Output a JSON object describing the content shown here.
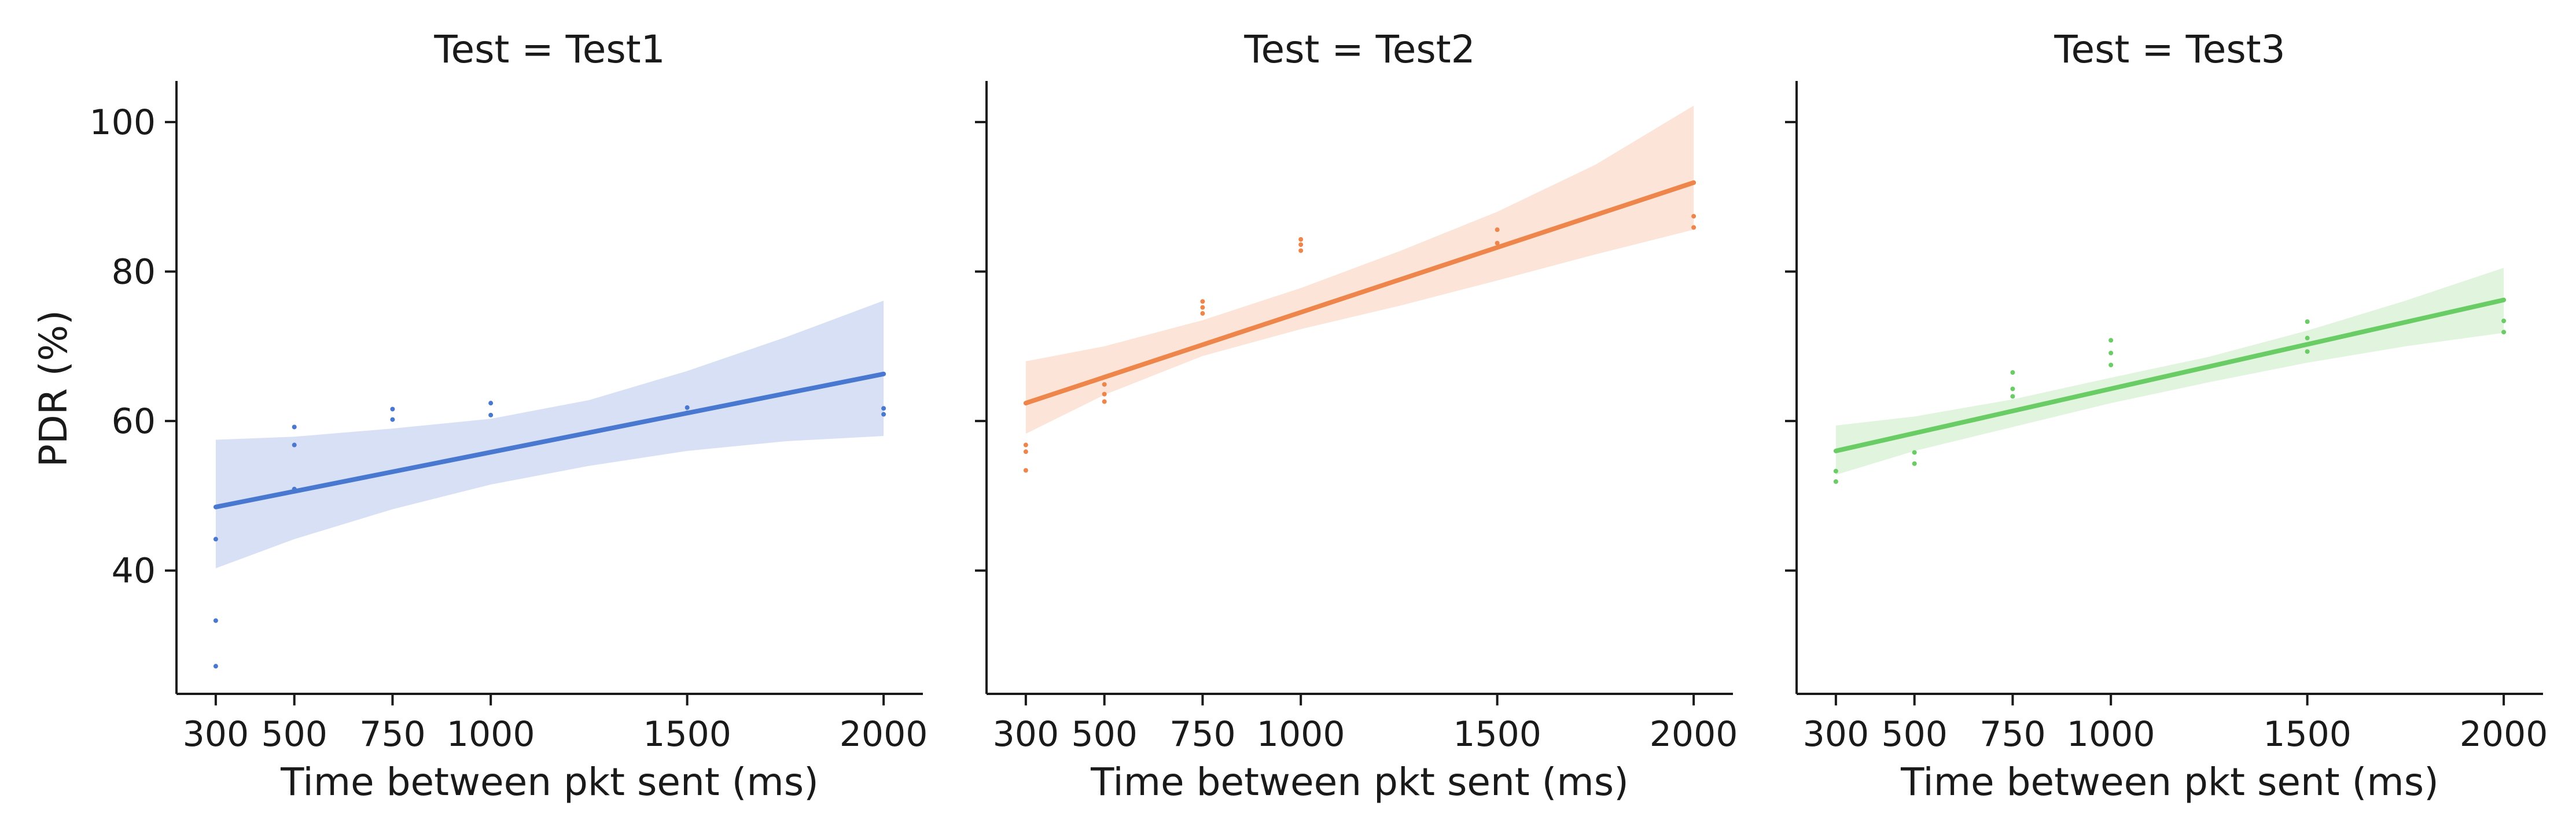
{
  "figure": {
    "ylabel": "PDR (%)",
    "xlabel": "Time between pkt sent (ms)"
  },
  "chart_data": [
    {
      "type": "scatter",
      "title": "Test = Test1",
      "xlabel": "Time between pkt sent (ms)",
      "ylabel": "PDR (%)",
      "x_ticks": [
        300,
        500,
        750,
        1000,
        1500,
        2000
      ],
      "y_ticks": [
        40,
        60,
        80,
        100
      ],
      "xlim": [
        200,
        2100
      ],
      "ylim": [
        23.5,
        105.5
      ],
      "color": "#4878d0",
      "band_color": "#c9d6f1",
      "points": [
        [
          300,
          27.2
        ],
        [
          300,
          33.3
        ],
        [
          300,
          44.2
        ],
        [
          500,
          50.9
        ],
        [
          500,
          56.8
        ],
        [
          500,
          59.2
        ],
        [
          750,
          60.2
        ],
        [
          750,
          61.6
        ],
        [
          1000,
          60.8
        ],
        [
          1000,
          62.4
        ],
        [
          1500,
          61.1
        ],
        [
          1500,
          61.8
        ],
        [
          2000,
          60.9
        ],
        [
          2000,
          61.7
        ]
      ],
      "regression": {
        "x": [
          300,
          2000
        ],
        "y": [
          48.5,
          66.3
        ]
      },
      "ci_band": {
        "x": [
          300,
          500,
          750,
          1000,
          1250,
          1500,
          1750,
          2000
        ],
        "lower": [
          40.3,
          44.2,
          48.2,
          51.5,
          54.0,
          56.0,
          57.3,
          58.0
        ],
        "upper": [
          57.5,
          57.9,
          59.0,
          60.3,
          62.8,
          66.7,
          71.2,
          76.1
        ]
      }
    },
    {
      "type": "scatter",
      "title": "Test = Test2",
      "xlabel": "Time between pkt sent (ms)",
      "ylabel": "PDR (%)",
      "x_ticks": [
        300,
        500,
        750,
        1000,
        1500,
        2000
      ],
      "y_ticks": [
        40,
        60,
        80,
        100
      ],
      "xlim": [
        200,
        2100
      ],
      "ylim": [
        23.5,
        105.5
      ],
      "color": "#ee854a",
      "band_color": "#fbdccb",
      "points": [
        [
          300,
          53.4
        ],
        [
          300,
          55.9
        ],
        [
          300,
          56.8
        ],
        [
          500,
          62.6
        ],
        [
          500,
          63.6
        ],
        [
          500,
          64.9
        ],
        [
          750,
          74.4
        ],
        [
          750,
          75.2
        ],
        [
          750,
          76.0
        ],
        [
          1000,
          82.8
        ],
        [
          1000,
          83.6
        ],
        [
          1000,
          84.3
        ],
        [
          1500,
          83.8
        ],
        [
          1500,
          85.6
        ],
        [
          2000,
          85.9
        ],
        [
          2000,
          87.4
        ]
      ],
      "regression": {
        "x": [
          300,
          2000
        ],
        "y": [
          62.4,
          91.9
        ]
      },
      "ci_band": {
        "x": [
          300,
          500,
          750,
          1000,
          1250,
          1500,
          1750,
          2000
        ],
        "lower": [
          58.3,
          63.5,
          68.7,
          72.3,
          75.4,
          78.8,
          82.3,
          85.6
        ],
        "upper": [
          68.0,
          70.0,
          73.5,
          77.8,
          82.7,
          88.0,
          94.3,
          102.2
        ]
      }
    },
    {
      "type": "scatter",
      "title": "Test = Test3",
      "xlabel": "Time between pkt sent (ms)",
      "ylabel": "PDR (%)",
      "x_ticks": [
        300,
        500,
        750,
        1000,
        1500,
        2000
      ],
      "y_ticks": [
        40,
        60,
        80,
        100
      ],
      "xlim": [
        200,
        2100
      ],
      "ylim": [
        23.5,
        105.5
      ],
      "color": "#6acc64",
      "band_color": "#d5f0d3",
      "points": [
        [
          300,
          51.9
        ],
        [
          300,
          53.3
        ],
        [
          500,
          54.3
        ],
        [
          500,
          55.8
        ],
        [
          750,
          63.3
        ],
        [
          750,
          64.3
        ],
        [
          750,
          66.5
        ],
        [
          1000,
          67.5
        ],
        [
          1000,
          69.1
        ],
        [
          1000,
          70.8
        ],
        [
          1500,
          69.3
        ],
        [
          1500,
          71.1
        ],
        [
          1500,
          73.3
        ],
        [
          2000,
          71.9
        ],
        [
          2000,
          73.4
        ]
      ],
      "regression": {
        "x": [
          300,
          2000
        ],
        "y": [
          56.0,
          76.2
        ]
      },
      "ci_band": {
        "x": [
          300,
          500,
          750,
          1000,
          1250,
          1500,
          1750,
          2000
        ],
        "lower": [
          52.8,
          56.0,
          59.2,
          62.4,
          65.2,
          67.8,
          70.0,
          71.8
        ],
        "upper": [
          59.4,
          60.6,
          62.9,
          65.8,
          68.6,
          72.1,
          76.1,
          80.5
        ]
      }
    }
  ]
}
